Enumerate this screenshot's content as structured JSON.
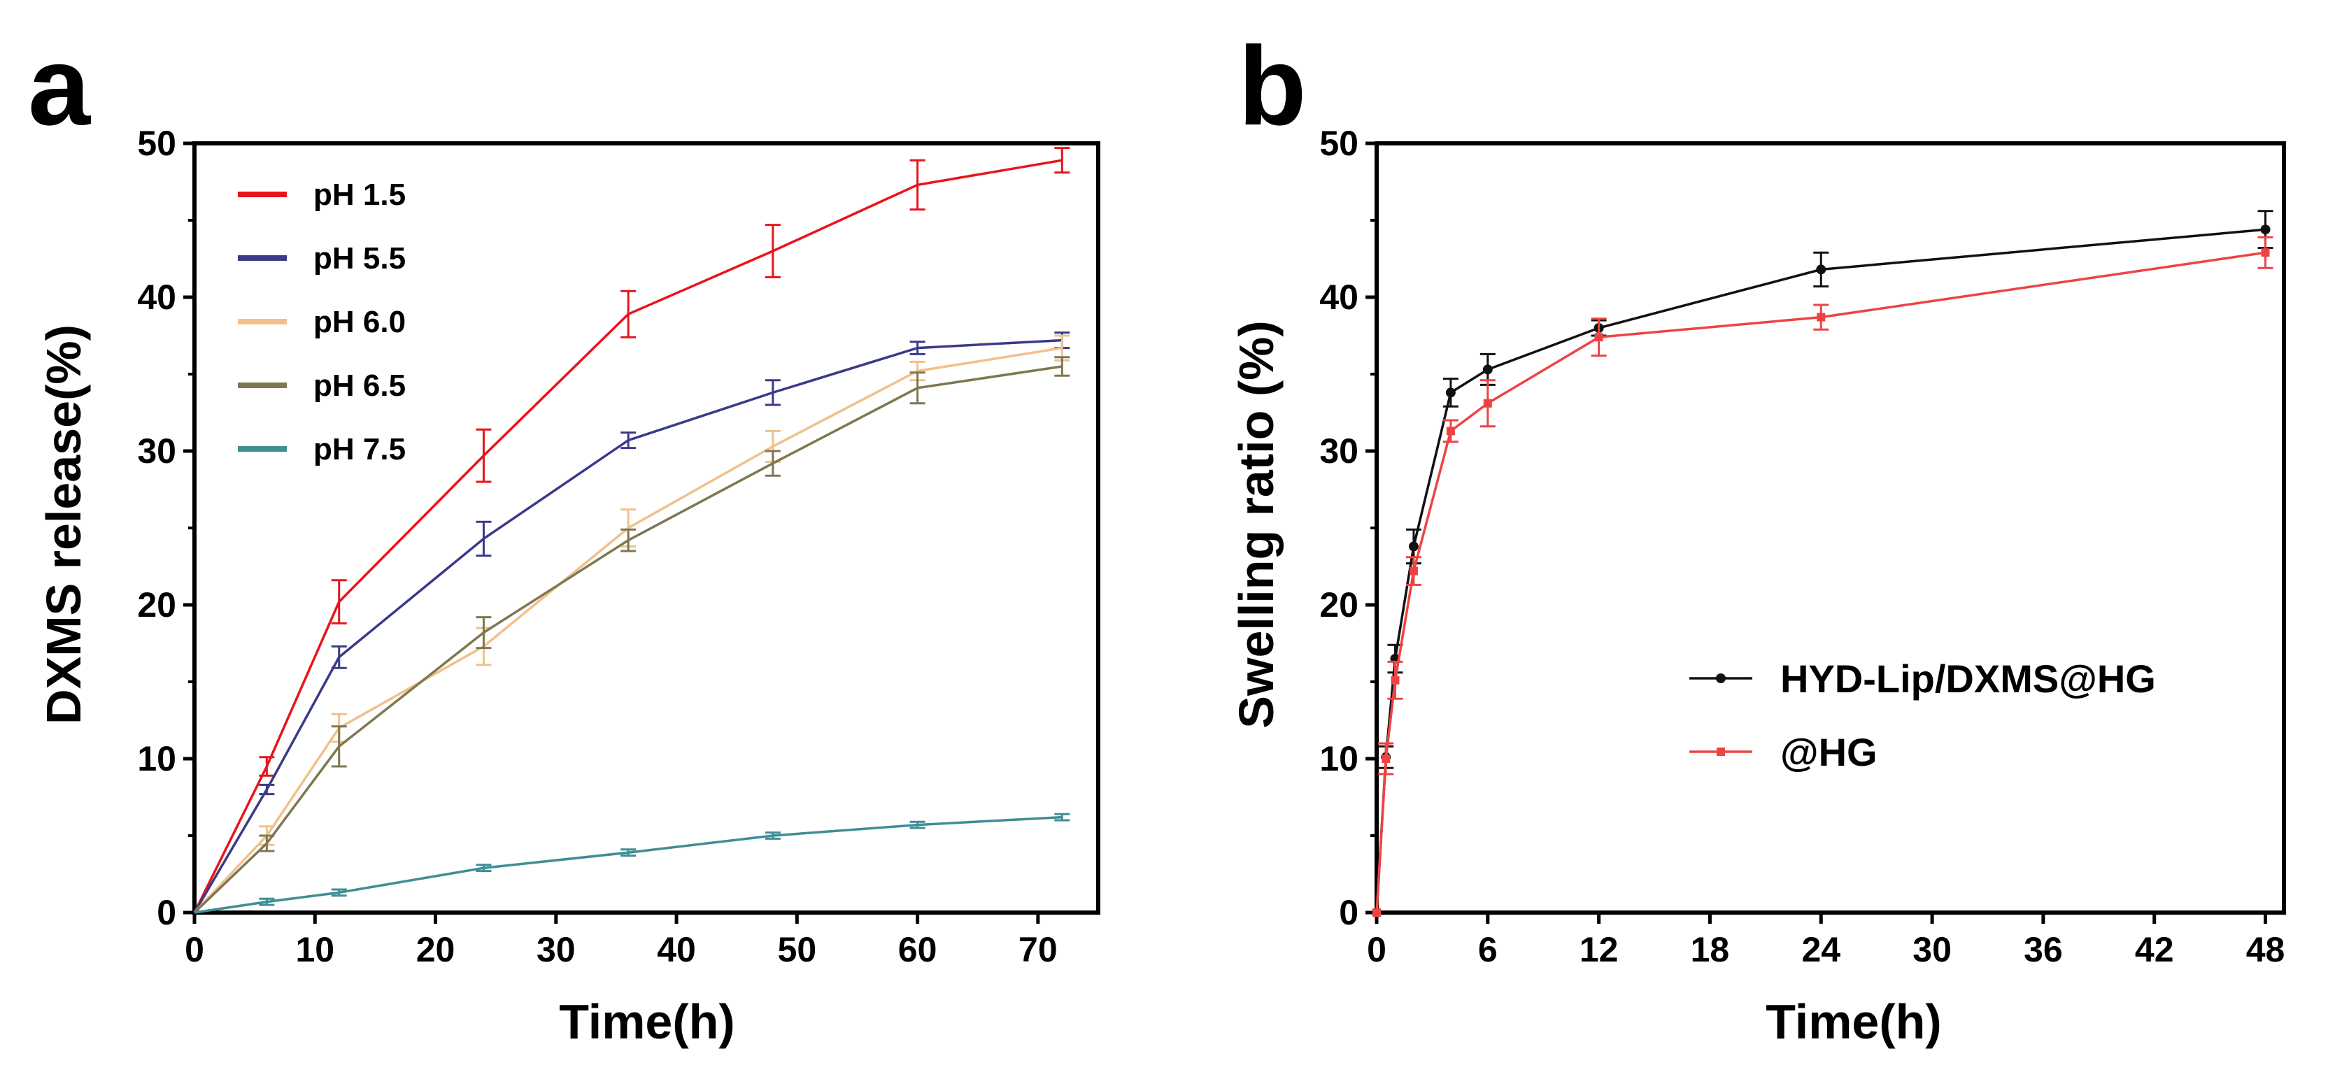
{
  "chart_data": [
    {
      "panel": "a",
      "type": "line",
      "title": "",
      "xlabel": "Time(h)",
      "ylabel": "DXMS release(%)",
      "xlim": [
        0,
        75
      ],
      "ylim": [
        0,
        50
      ],
      "xticks": [
        0,
        10,
        20,
        30,
        40,
        50,
        60,
        70
      ],
      "yticks": [
        0,
        10,
        20,
        30,
        40,
        50
      ],
      "x": [
        0,
        6,
        12,
        24,
        36,
        48,
        60,
        72
      ],
      "legend_position": "top-left",
      "series": [
        {
          "name": "pH 1.5",
          "color": "#e8141b",
          "values": [
            0,
            9.5,
            20.2,
            29.7,
            38.9,
            43.0,
            47.3,
            48.9
          ],
          "errors": [
            0,
            0.6,
            1.4,
            1.7,
            1.5,
            1.7,
            1.6,
            0.8
          ]
        },
        {
          "name": "pH 5.5",
          "color": "#3a3a8a",
          "values": [
            0,
            8.0,
            16.6,
            24.3,
            30.7,
            33.8,
            36.7,
            37.2
          ],
          "errors": [
            0,
            0.3,
            0.7,
            1.1,
            0.5,
            0.8,
            0.4,
            0.5
          ]
        },
        {
          "name": "pH 6.0",
          "color": "#f2c08c",
          "values": [
            0,
            5.0,
            12.0,
            17.3,
            25.0,
            30.3,
            35.2,
            36.7
          ],
          "errors": [
            0,
            0.6,
            0.9,
            1.2,
            1.2,
            1.0,
            0.6,
            0.8
          ]
        },
        {
          "name": "pH 6.5",
          "color": "#7e7850",
          "values": [
            0,
            4.5,
            10.8,
            18.2,
            24.2,
            29.2,
            34.1,
            35.5
          ],
          "errors": [
            0,
            0.5,
            1.3,
            1.0,
            0.7,
            0.8,
            1.0,
            0.6
          ]
        },
        {
          "name": "pH 7.5",
          "color": "#3f8e96",
          "values": [
            0,
            0.7,
            1.3,
            2.9,
            3.9,
            5.0,
            5.7,
            6.2
          ],
          "errors": [
            0,
            0.2,
            0.2,
            0.2,
            0.2,
            0.2,
            0.2,
            0.2
          ]
        }
      ]
    },
    {
      "panel": "b",
      "type": "line",
      "title": "",
      "xlabel": "Time(h)",
      "ylabel": "Swelling ratio (%)",
      "xlim": [
        0,
        49
      ],
      "ylim": [
        0,
        50
      ],
      "xticks": [
        0,
        6,
        12,
        18,
        24,
        30,
        36,
        42,
        48
      ],
      "yticks": [
        0,
        10,
        20,
        30,
        40,
        50
      ],
      "x": [
        0,
        0.5,
        1,
        2,
        4,
        6,
        12,
        24,
        48
      ],
      "legend_position": "center-right",
      "series": [
        {
          "name": "HYD-Lip/DXMS@HG",
          "color": "#111111",
          "marker": "circle",
          "values": [
            0,
            10.1,
            16.5,
            23.8,
            33.8,
            35.3,
            38.0,
            41.8,
            44.4
          ],
          "errors": [
            0,
            0.7,
            0.9,
            1.1,
            0.9,
            1.0,
            0.5,
            1.1,
            1.2
          ]
        },
        {
          "name": "@HG",
          "color": "#ee4343",
          "marker": "square",
          "values": [
            0,
            10.0,
            15.1,
            22.2,
            31.3,
            33.1,
            37.4,
            38.7,
            42.9
          ],
          "errors": [
            0,
            1.0,
            1.2,
            0.9,
            0.7,
            1.5,
            1.2,
            0.8,
            1.0
          ]
        }
      ]
    }
  ]
}
